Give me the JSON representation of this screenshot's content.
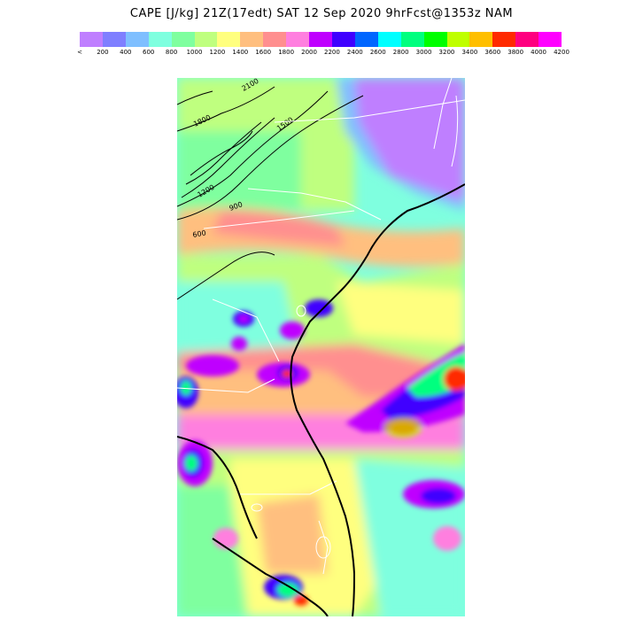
{
  "title": "CAPE [J/kg] 21Z(17edt) SAT 12 Sep 2020 9hrFcst@1353z NAM",
  "legend": {
    "colors": [
      "#bf7fff",
      "#7f7fff",
      "#7fbfff",
      "#7fffdf",
      "#7fff9f",
      "#bfff7f",
      "#ffff7f",
      "#ffbf7f",
      "#ff8f8f",
      "#ff7fdf",
      "#bf00ff",
      "#3f00ff",
      "#0066ff",
      "#00ffff",
      "#00ff7f",
      "#00ff00",
      "#bfff00",
      "#ffbf00",
      "#ff2a00",
      "#ff0080",
      "#ff00ff"
    ],
    "labels": [
      "<",
      "200",
      "400",
      "600",
      "800",
      "1000",
      "1200",
      "1400",
      "1600",
      "1800",
      "2000",
      "2200",
      "2400",
      "2600",
      "2800",
      "3000",
      "3200",
      "3400",
      "3600",
      "3800",
      "4000",
      "4200"
    ]
  },
  "map": {
    "contour_labels": [
      "2100",
      "1800",
      "1500",
      "1200",
      "900",
      "600"
    ]
  }
}
